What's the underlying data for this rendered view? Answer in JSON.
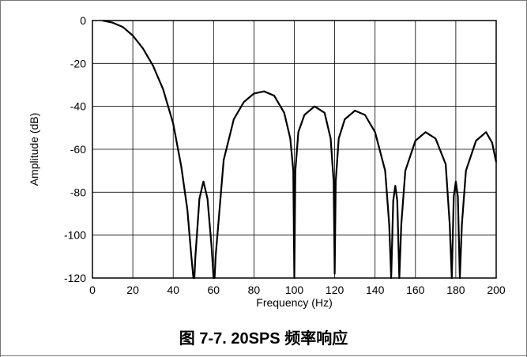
{
  "caption": "图 7-7. 20SPS 频率响应",
  "chart_data": {
    "type": "line",
    "title": "",
    "xlabel": "Frequency (Hz)",
    "ylabel": "Amplitude (dB)",
    "xlim": [
      0,
      200
    ],
    "ylim": [
      -120,
      0
    ],
    "x_ticks": [
      0,
      20,
      40,
      60,
      80,
      100,
      120,
      140,
      160,
      180,
      200
    ],
    "y_ticks": [
      0,
      -20,
      -40,
      -60,
      -80,
      -100,
      -120
    ],
    "grid": true,
    "legend": "none",
    "series": [
      {
        "color": "#000000",
        "x": [
          5,
          10,
          15,
          20,
          25,
          30,
          35,
          40,
          44,
          47,
          49,
          50,
          50.5,
          51,
          53,
          55,
          57,
          59,
          60,
          60.5,
          61,
          65,
          70,
          75,
          80,
          85,
          90,
          95,
          98,
          99.5,
          100,
          100.5,
          102,
          105,
          110,
          115,
          118,
          119.5,
          120,
          120.5,
          122,
          125,
          130,
          135,
          140,
          145,
          147,
          148,
          149,
          150,
          151,
          152,
          153,
          155,
          160,
          165,
          170,
          175,
          177,
          178,
          179,
          180,
          181,
          182,
          183,
          185,
          190,
          195,
          198,
          200
        ],
        "y": [
          0,
          -1,
          -3,
          -7,
          -13,
          -21,
          -32,
          -48,
          -68,
          -88,
          -110,
          -120,
          -120,
          -110,
          -83,
          -75,
          -83,
          -105,
          -120,
          -120,
          -110,
          -65,
          -46,
          -38,
          -34,
          -33,
          -35,
          -43,
          -55,
          -70,
          -120,
          -70,
          -52,
          -44,
          -40,
          -43,
          -55,
          -75,
          -118,
          -75,
          -55,
          -46,
          -42,
          -44,
          -52,
          -70,
          -95,
          -120,
          -84,
          -77,
          -84,
          -120,
          -95,
          -70,
          -56,
          -52,
          -55,
          -67,
          -95,
          -120,
          -82,
          -75,
          -82,
          -120,
          -95,
          -70,
          -56,
          -52,
          -57,
          -66
        ]
      }
    ]
  }
}
